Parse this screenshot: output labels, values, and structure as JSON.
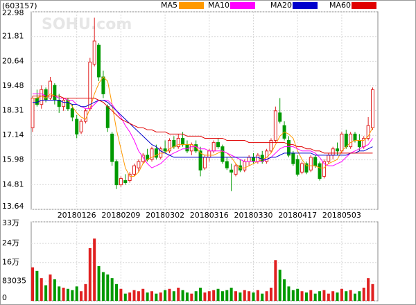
{
  "chart_data": [
    {
      "type": "candlestick",
      "title": "(603157)",
      "watermark": "SOHU.com",
      "up_color": "#e02020",
      "down_color": "#009900",
      "grid": true,
      "ylim": [
        13.64,
        22.98
      ],
      "yticks": [
        13.64,
        14.81,
        15.98,
        17.14,
        18.31,
        19.48,
        20.64,
        21.81,
        22.98
      ],
      "categories": [
        null,
        null,
        null,
        null,
        null,
        null,
        null,
        null,
        null,
        null,
        "20180126",
        null,
        null,
        null,
        null,
        null,
        null,
        null,
        null,
        null,
        "20180209",
        null,
        null,
        null,
        null,
        null,
        null,
        null,
        null,
        null,
        "20180302",
        null,
        null,
        null,
        null,
        null,
        null,
        null,
        null,
        null,
        "20180316",
        null,
        null,
        null,
        null,
        null,
        null,
        null,
        null,
        null,
        "20180330",
        null,
        null,
        null,
        null,
        null,
        null,
        null,
        null,
        null,
        "20180417",
        null,
        null,
        null,
        null,
        null,
        null,
        null,
        null,
        null,
        "20180503",
        null,
        null,
        null,
        null,
        null,
        null,
        null
      ],
      "ohlc": [
        [
          17.5,
          19.0,
          17.3,
          18.9
        ],
        [
          18.9,
          19.3,
          18.5,
          18.6
        ],
        [
          18.6,
          19.5,
          18.4,
          19.3
        ],
        [
          19.3,
          19.4,
          18.7,
          18.8
        ],
        [
          18.9,
          19.9,
          18.8,
          19.7
        ],
        [
          19.5,
          19.6,
          18.6,
          18.8
        ],
        [
          18.8,
          19.1,
          18.2,
          18.5
        ],
        [
          18.5,
          18.9,
          18.3,
          18.8
        ],
        [
          18.8,
          18.9,
          18.3,
          18.4
        ],
        [
          18.4,
          18.6,
          17.8,
          18.0
        ],
        [
          17.9,
          18.1,
          17.0,
          17.2
        ],
        [
          17.3,
          17.9,
          17.2,
          17.8
        ],
        [
          17.8,
          18.4,
          17.7,
          18.3
        ],
        [
          18.4,
          20.8,
          18.3,
          20.6
        ],
        [
          20.5,
          22.7,
          20.4,
          21.6
        ],
        [
          21.4,
          21.5,
          19.7,
          19.9
        ],
        [
          19.9,
          20.2,
          18.9,
          19.1
        ],
        [
          18.5,
          18.6,
          17.3,
          17.5
        ],
        [
          17.2,
          17.3,
          15.7,
          15.9
        ],
        [
          15.9,
          16.0,
          14.6,
          14.8
        ],
        [
          14.8,
          15.2,
          14.7,
          15.1
        ],
        [
          15.0,
          15.3,
          14.8,
          14.9
        ],
        [
          15.0,
          15.4,
          14.9,
          15.3
        ],
        [
          15.3,
          15.8,
          15.2,
          15.7
        ],
        [
          15.6,
          16.0,
          15.4,
          15.9
        ],
        [
          15.9,
          16.3,
          15.8,
          16.2
        ],
        [
          16.2,
          16.5,
          15.9,
          16.0
        ],
        [
          16.0,
          16.6,
          15.9,
          16.5
        ],
        [
          16.5,
          16.7,
          16.0,
          16.1
        ],
        [
          16.1,
          16.6,
          16.0,
          16.5
        ],
        [
          16.5,
          16.9,
          16.3,
          16.4
        ],
        [
          16.4,
          17.0,
          16.3,
          16.9
        ],
        [
          16.9,
          17.1,
          16.5,
          16.6
        ],
        [
          16.6,
          17.2,
          16.5,
          17.0
        ],
        [
          17.0,
          17.3,
          16.6,
          16.7
        ],
        [
          16.7,
          16.9,
          16.3,
          16.4
        ],
        [
          16.4,
          16.8,
          16.2,
          16.7
        ],
        [
          16.7,
          16.9,
          16.3,
          16.4
        ],
        [
          16.4,
          16.6,
          15.2,
          15.5
        ],
        [
          15.6,
          16.2,
          15.5,
          16.1
        ],
        [
          16.1,
          16.5,
          15.9,
          16.4
        ],
        [
          16.4,
          16.9,
          16.3,
          16.8
        ],
        [
          16.8,
          17.0,
          16.5,
          16.6
        ],
        [
          16.6,
          16.7,
          15.8,
          15.9
        ],
        [
          15.9,
          16.1,
          15.5,
          15.6
        ],
        [
          15.5,
          15.8,
          14.5,
          15.4
        ],
        [
          15.3,
          15.8,
          15.2,
          15.7
        ],
        [
          15.7,
          16.0,
          15.4,
          15.5
        ],
        [
          15.5,
          16.0,
          15.4,
          15.9
        ],
        [
          15.9,
          16.2,
          15.7,
          16.1
        ],
        [
          16.1,
          16.3,
          15.8,
          15.9
        ],
        [
          15.9,
          16.3,
          15.8,
          16.2
        ],
        [
          16.2,
          16.4,
          15.8,
          15.9
        ],
        [
          15.9,
          16.5,
          15.8,
          16.4
        ],
        [
          16.4,
          17.0,
          16.3,
          16.9
        ],
        [
          16.9,
          18.5,
          16.8,
          18.3
        ],
        [
          18.2,
          18.9,
          17.7,
          17.8
        ],
        [
          17.6,
          17.8,
          16.9,
          17.0
        ],
        [
          16.9,
          17.1,
          16.1,
          16.2
        ],
        [
          16.3,
          16.4,
          15.7,
          15.8
        ],
        [
          16.0,
          16.2,
          15.2,
          15.3
        ],
        [
          15.4,
          15.9,
          15.3,
          15.8
        ],
        [
          15.8,
          15.9,
          15.3,
          15.4
        ],
        [
          15.5,
          16.2,
          15.4,
          16.1
        ],
        [
          16.1,
          16.2,
          15.6,
          15.7
        ],
        [
          15.8,
          15.9,
          15.0,
          15.1
        ],
        [
          15.2,
          16.0,
          15.1,
          15.9
        ],
        [
          15.9,
          16.3,
          15.8,
          16.2
        ],
        [
          16.2,
          16.6,
          16.0,
          16.5
        ],
        [
          16.5,
          16.8,
          16.2,
          16.4
        ],
        [
          16.4,
          17.3,
          16.3,
          17.2
        ],
        [
          17.2,
          17.4,
          16.5,
          16.6
        ],
        [
          16.6,
          17.3,
          16.5,
          17.2
        ],
        [
          17.2,
          17.3,
          16.8,
          16.9
        ],
        [
          16.9,
          17.2,
          16.4,
          16.6
        ],
        [
          16.6,
          17.1,
          16.5,
          17.0
        ],
        [
          17.0,
          18.0,
          16.9,
          17.6
        ],
        [
          17.5,
          19.4,
          17.4,
          19.3
        ]
      ],
      "series": [
        {
          "name": "MA5",
          "color": "#ff9900",
          "values": [
            18.9,
            18.9,
            19.0,
            18.9,
            19.1,
            19.0,
            19.0,
            18.9,
            18.8,
            18.5,
            18.2,
            18.0,
            17.9,
            18.4,
            19.1,
            19.6,
            19.9,
            19.7,
            18.6,
            17.4,
            16.5,
            15.6,
            15.2,
            15.2,
            15.4,
            15.8,
            16.0,
            16.1,
            16.2,
            16.3,
            16.3,
            16.5,
            16.6,
            16.7,
            16.7,
            16.7,
            16.7,
            16.6,
            16.3,
            16.2,
            16.2,
            16.2,
            16.3,
            16.4,
            16.3,
            16.1,
            15.8,
            15.6,
            15.6,
            15.7,
            15.8,
            15.9,
            16.0,
            16.1,
            16.3,
            16.7,
            17.1,
            17.3,
            17.2,
            17.0,
            16.4,
            16.0,
            15.7,
            15.7,
            15.7,
            15.6,
            15.6,
            15.8,
            15.9,
            16.0,
            16.4,
            16.6,
            16.8,
            16.9,
            16.9,
            16.9,
            17.1,
            17.5
          ]
        },
        {
          "name": "MA10",
          "color": "#ff00ff",
          "values": [
            19.1,
            19.1,
            19.1,
            19.0,
            19.0,
            19.0,
            18.9,
            18.9,
            18.8,
            18.8,
            18.6,
            18.5,
            18.4,
            18.4,
            18.6,
            18.8,
            18.8,
            18.8,
            18.6,
            18.3,
            18.0,
            17.6,
            17.3,
            16.9,
            16.4,
            16.1,
            15.8,
            15.6,
            15.7,
            15.8,
            16.0,
            16.2,
            16.3,
            16.4,
            16.5,
            16.5,
            16.6,
            16.6,
            16.5,
            16.5,
            16.4,
            16.4,
            16.4,
            16.4,
            16.3,
            16.2,
            16.1,
            16.0,
            15.9,
            15.9,
            15.9,
            15.9,
            15.9,
            16.0,
            16.1,
            16.3,
            16.5,
            16.6,
            16.6,
            16.6,
            16.5,
            16.4,
            16.4,
            16.4,
            16.3,
            16.1,
            15.8,
            15.7,
            15.7,
            15.8,
            15.9,
            16.1,
            16.3,
            16.4,
            16.5,
            16.6,
            16.7,
            17.0
          ]
        },
        {
          "name": "MA20",
          "color": "#0000cc",
          "values": [
            18.7,
            18.7,
            18.8,
            18.8,
            18.8,
            18.8,
            18.8,
            18.7,
            18.7,
            18.6,
            18.6,
            18.5,
            18.5,
            18.6,
            18.7,
            18.8,
            18.8,
            18.7,
            18.5,
            18.3,
            18.1,
            17.9,
            17.7,
            17.5,
            17.3,
            17.1,
            16.9,
            16.7,
            16.6,
            16.4,
            16.3,
            16.2,
            16.1,
            16.1,
            16.1,
            16.1,
            16.1,
            16.1,
            16.1,
            16.1,
            16.1,
            16.1,
            16.1,
            16.1,
            16.1,
            16.1,
            16.1,
            16.1,
            16.1,
            16.1,
            16.1,
            16.1,
            16.0,
            16.0,
            16.1,
            16.1,
            16.2,
            16.3,
            16.3,
            16.3,
            16.3,
            16.3,
            16.3,
            16.3,
            16.2,
            16.2,
            16.2,
            16.2,
            16.2,
            16.2,
            16.2,
            16.2,
            16.3,
            16.3,
            16.4,
            16.4,
            16.5,
            16.6
          ]
        },
        {
          "name": "MA60",
          "color": "#e00000",
          "values": [
            19.0,
            19.0,
            19.0,
            19.0,
            19.0,
            19.0,
            19.0,
            18.9,
            18.9,
            18.9,
            18.9,
            18.9,
            18.9,
            18.9,
            18.9,
            18.8,
            18.7,
            18.5,
            18.3,
            18.1,
            17.9,
            17.8,
            17.7,
            17.6,
            17.5,
            17.5,
            17.4,
            17.4,
            17.3,
            17.3,
            17.3,
            17.2,
            17.2,
            17.2,
            17.2,
            17.1,
            17.1,
            17.1,
            17.1,
            17.0,
            17.0,
            17.0,
            17.0,
            17.0,
            16.9,
            16.9,
            16.9,
            16.9,
            16.9,
            16.8,
            16.8,
            16.8,
            16.8,
            16.8,
            16.8,
            16.8,
            16.8,
            16.8,
            16.7,
            16.7,
            16.6,
            16.6,
            16.5,
            16.5,
            16.4,
            16.4,
            16.3,
            16.3,
            16.3,
            16.3,
            16.3,
            16.3,
            16.3,
            16.3,
            16.3,
            16.3,
            16.3,
            16.3
          ]
        }
      ]
    },
    {
      "type": "bar",
      "ylim": [
        0,
        330000
      ],
      "yticks": [
        {
          "value": 330000,
          "label": "33万"
        },
        {
          "value": 240000,
          "label": "24万"
        },
        {
          "value": 160000,
          "label": "16万"
        },
        83035,
        0
      ],
      "values": [
        140000,
        125000,
        95000,
        65000,
        110000,
        90000,
        60000,
        55000,
        50000,
        45000,
        60000,
        40000,
        70000,
        220000,
        260000,
        145000,
        120000,
        110000,
        95000,
        70000,
        50000,
        30000,
        35000,
        45000,
        40000,
        50000,
        35000,
        40000,
        30000,
        35000,
        45000,
        50000,
        40000,
        55000,
        45000,
        35000,
        30000,
        40000,
        55000,
        35000,
        40000,
        45000,
        50000,
        40000,
        45000,
        55000,
        40000,
        35000,
        45000,
        40000,
        35000,
        45000,
        30000,
        40000,
        55000,
        170000,
        130000,
        90000,
        60000,
        45000,
        50000,
        40000,
        35000,
        45000,
        30000,
        40000,
        45000,
        30000,
        40000,
        35000,
        50000,
        40000,
        45000,
        30000,
        40000,
        55000,
        95000,
        70000
      ]
    }
  ]
}
